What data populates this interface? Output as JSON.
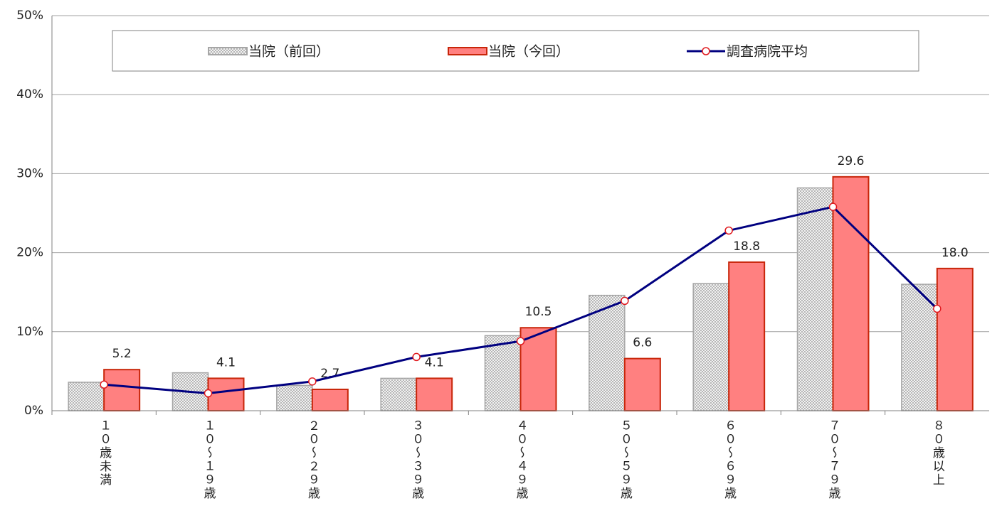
{
  "chart_data": {
    "type": "bar",
    "categories": [
      "１０歳未満",
      "１０～１９歳",
      "２０～２９歳",
      "３０～３９歳",
      "４０～４９歳",
      "５０～５９歳",
      "６０～６９歳",
      "７０～７９歳",
      "８０歳以上"
    ],
    "series": [
      {
        "name": "当院（前回）",
        "type": "bar",
        "color": "#d9d9d9",
        "edge": "#a6a6a6",
        "values": [
          3.6,
          4.8,
          3.2,
          4.1,
          9.5,
          14.6,
          16.1,
          28.2,
          16.0
        ]
      },
      {
        "name": "当院（今回）",
        "type": "bar",
        "color": "#ff8080",
        "edge": "#c8260a",
        "values": [
          5.2,
          4.1,
          2.7,
          4.1,
          10.5,
          6.6,
          18.8,
          29.6,
          18.0
        ],
        "value_labels": [
          "5.2",
          "4.1",
          "2.7",
          "4.1",
          "10.5",
          "6.6",
          "18.8",
          "29.6",
          "18.0"
        ]
      },
      {
        "name": "調査病院平均",
        "type": "line",
        "color": "#000080",
        "marker": "#e0191e",
        "values": [
          3.3,
          2.2,
          3.7,
          6.8,
          8.8,
          13.9,
          22.8,
          25.8,
          12.9
        ]
      }
    ],
    "ylim": [
      0,
      50
    ],
    "yticks": [
      {
        "value": 0,
        "label": "0%"
      },
      {
        "value": 10,
        "label": "10%"
      },
      {
        "value": 20,
        "label": "20%"
      },
      {
        "value": 30,
        "label": "30%"
      },
      {
        "value": 40,
        "label": "40%"
      },
      {
        "value": 50,
        "label": "50%"
      }
    ],
    "grid": true,
    "legend": "top"
  }
}
